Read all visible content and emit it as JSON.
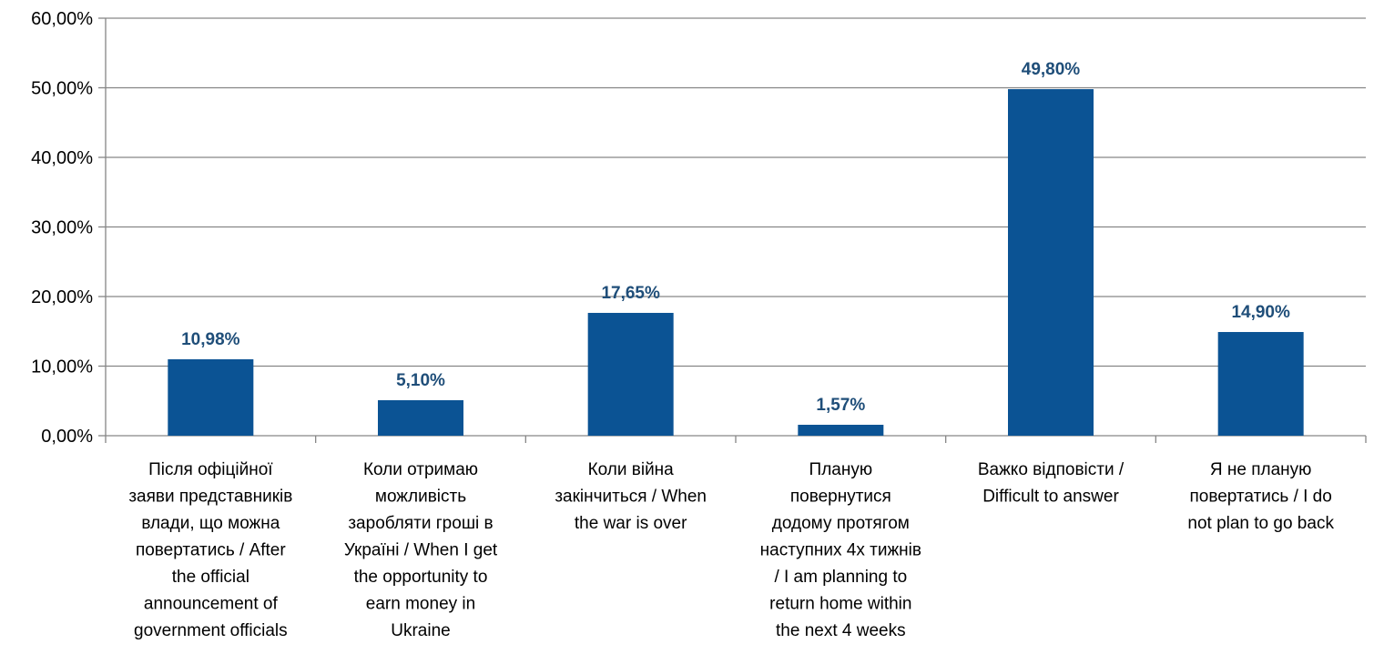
{
  "chart_data": {
    "type": "bar",
    "title": "",
    "xlabel": "",
    "ylabel": "",
    "ylim": [
      0,
      60
    ],
    "yticks": [
      0,
      10,
      20,
      30,
      40,
      50,
      60
    ],
    "ytick_labels": [
      "0,00%",
      "10,00%",
      "20,00%",
      "30,00%",
      "40,00%",
      "50,00%",
      "60,00%"
    ],
    "grid": true,
    "legend": "none",
    "categories": [
      [
        "Після офіційної",
        "заяви представників",
        "влади, що можна",
        "повертатись / After",
        "the official",
        "announcement of",
        "government officials"
      ],
      [
        "Коли отримаю",
        "можливість",
        "заробляти гроші в",
        "Україні / When I get",
        "the opportunity to",
        "earn money in",
        "Ukraine"
      ],
      [
        "Коли війна",
        "закінчиться / When",
        "the war is over"
      ],
      [
        "Планую",
        "повернутися",
        "додому протягом",
        "наступних 4х тижнів",
        "/ I am planning to",
        "return home within",
        "the next 4 weeks"
      ],
      [
        "Важко відповісти /",
        "Difficult to answer"
      ],
      [
        "Я не планую",
        "повертатись / I do",
        "not plan to go back"
      ]
    ],
    "values": [
      10.98,
      5.1,
      17.65,
      1.57,
      49.8,
      14.9
    ],
    "value_labels": [
      "10,98%",
      "5,10%",
      "17,65%",
      "1,57%",
      "49,80%",
      "14,90%"
    ]
  },
  "colors": {
    "bar": "#0B5394",
    "data_label": "#1F4E79",
    "grid": "#868686",
    "axis": "#868686",
    "text": "#000000"
  }
}
